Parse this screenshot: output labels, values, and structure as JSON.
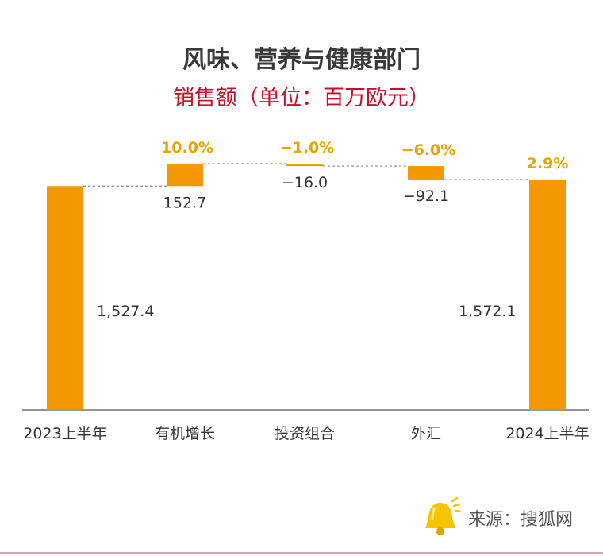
{
  "title": "风味、营养与健康部门",
  "subtitle": "销售额（单位：百万欧元）",
  "source_text": "来源：搜狐网",
  "colors": {
    "bar": "#f39800",
    "pct": "#e8a400",
    "title": "#3a3a3a",
    "subtitle": "#c8102e",
    "axis": "#666666"
  },
  "chart_data": {
    "type": "bar",
    "subtype": "waterfall",
    "categories": [
      "2023上半年",
      "有机增长",
      "投资组合",
      "外汇",
      "2024上半年"
    ],
    "values": [
      1527.4,
      152.7,
      -16.0,
      -92.1,
      1572.1
    ],
    "value_labels": [
      "1,527.4",
      "152.7",
      "−16.0",
      "−92.1",
      "1,572.1"
    ],
    "pct_labels": [
      "",
      "10.0%",
      "−1.0%",
      "−6.0%",
      "2.9%"
    ],
    "ylim": [
      0,
      1800
    ],
    "grid": false,
    "legend": "none"
  }
}
